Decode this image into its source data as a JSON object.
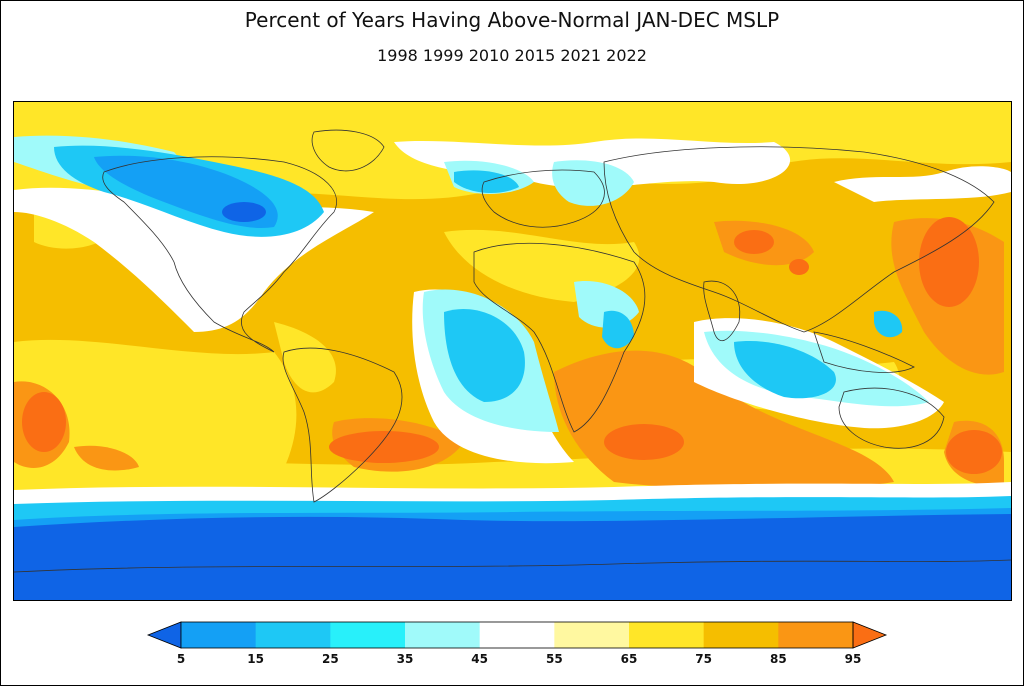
{
  "title": "Percent of Years Having Above-Normal JAN-DEC MSLP",
  "subtitle": "1998 1999 2010 2015 2021 2022",
  "colorbar": {
    "labels": [
      "5",
      "15",
      "25",
      "35",
      "45",
      "55",
      "65",
      "75",
      "85",
      "95"
    ],
    "colors": [
      "#0f64e6",
      "#14a0f5",
      "#1ec8f5",
      "#28f0fa",
      "#a0fafa",
      "#ffffff",
      "#fff8a0",
      "#ffe628",
      "#f5be00",
      "#fa9614",
      "#fa6e14"
    ]
  },
  "map": {
    "variable": "JAN-DEC MSLP",
    "palette": {
      "deep_blue": "#0f64e6",
      "blue": "#14a0f5",
      "cyan": "#1ec8f5",
      "light_cyan": "#a0fafa",
      "white": "#ffffff",
      "yellow": "#ffe628",
      "gold": "#f5be00",
      "orange": "#fa9614",
      "dark_orange": "#fa6e14"
    }
  }
}
